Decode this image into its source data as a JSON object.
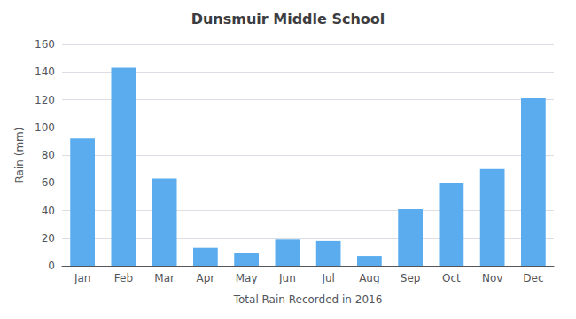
{
  "chart_data": {
    "type": "bar",
    "title": "Dunsmuir Middle School",
    "xlabel": "Total Rain Recorded in 2016",
    "ylabel": "Rain (mm)",
    "categories": [
      "Jan",
      "Feb",
      "Mar",
      "Apr",
      "May",
      "Jun",
      "Jul",
      "Aug",
      "Sep",
      "Oct",
      "Nov",
      "Dec"
    ],
    "values": [
      92,
      143,
      63,
      13,
      9,
      19,
      18,
      7,
      41,
      60,
      70,
      121
    ],
    "color": "#5aacee",
    "ylim": [
      0,
      160
    ],
    "yticks": [
      0,
      20,
      40,
      60,
      80,
      100,
      120,
      140,
      160
    ],
    "grid": true
  }
}
